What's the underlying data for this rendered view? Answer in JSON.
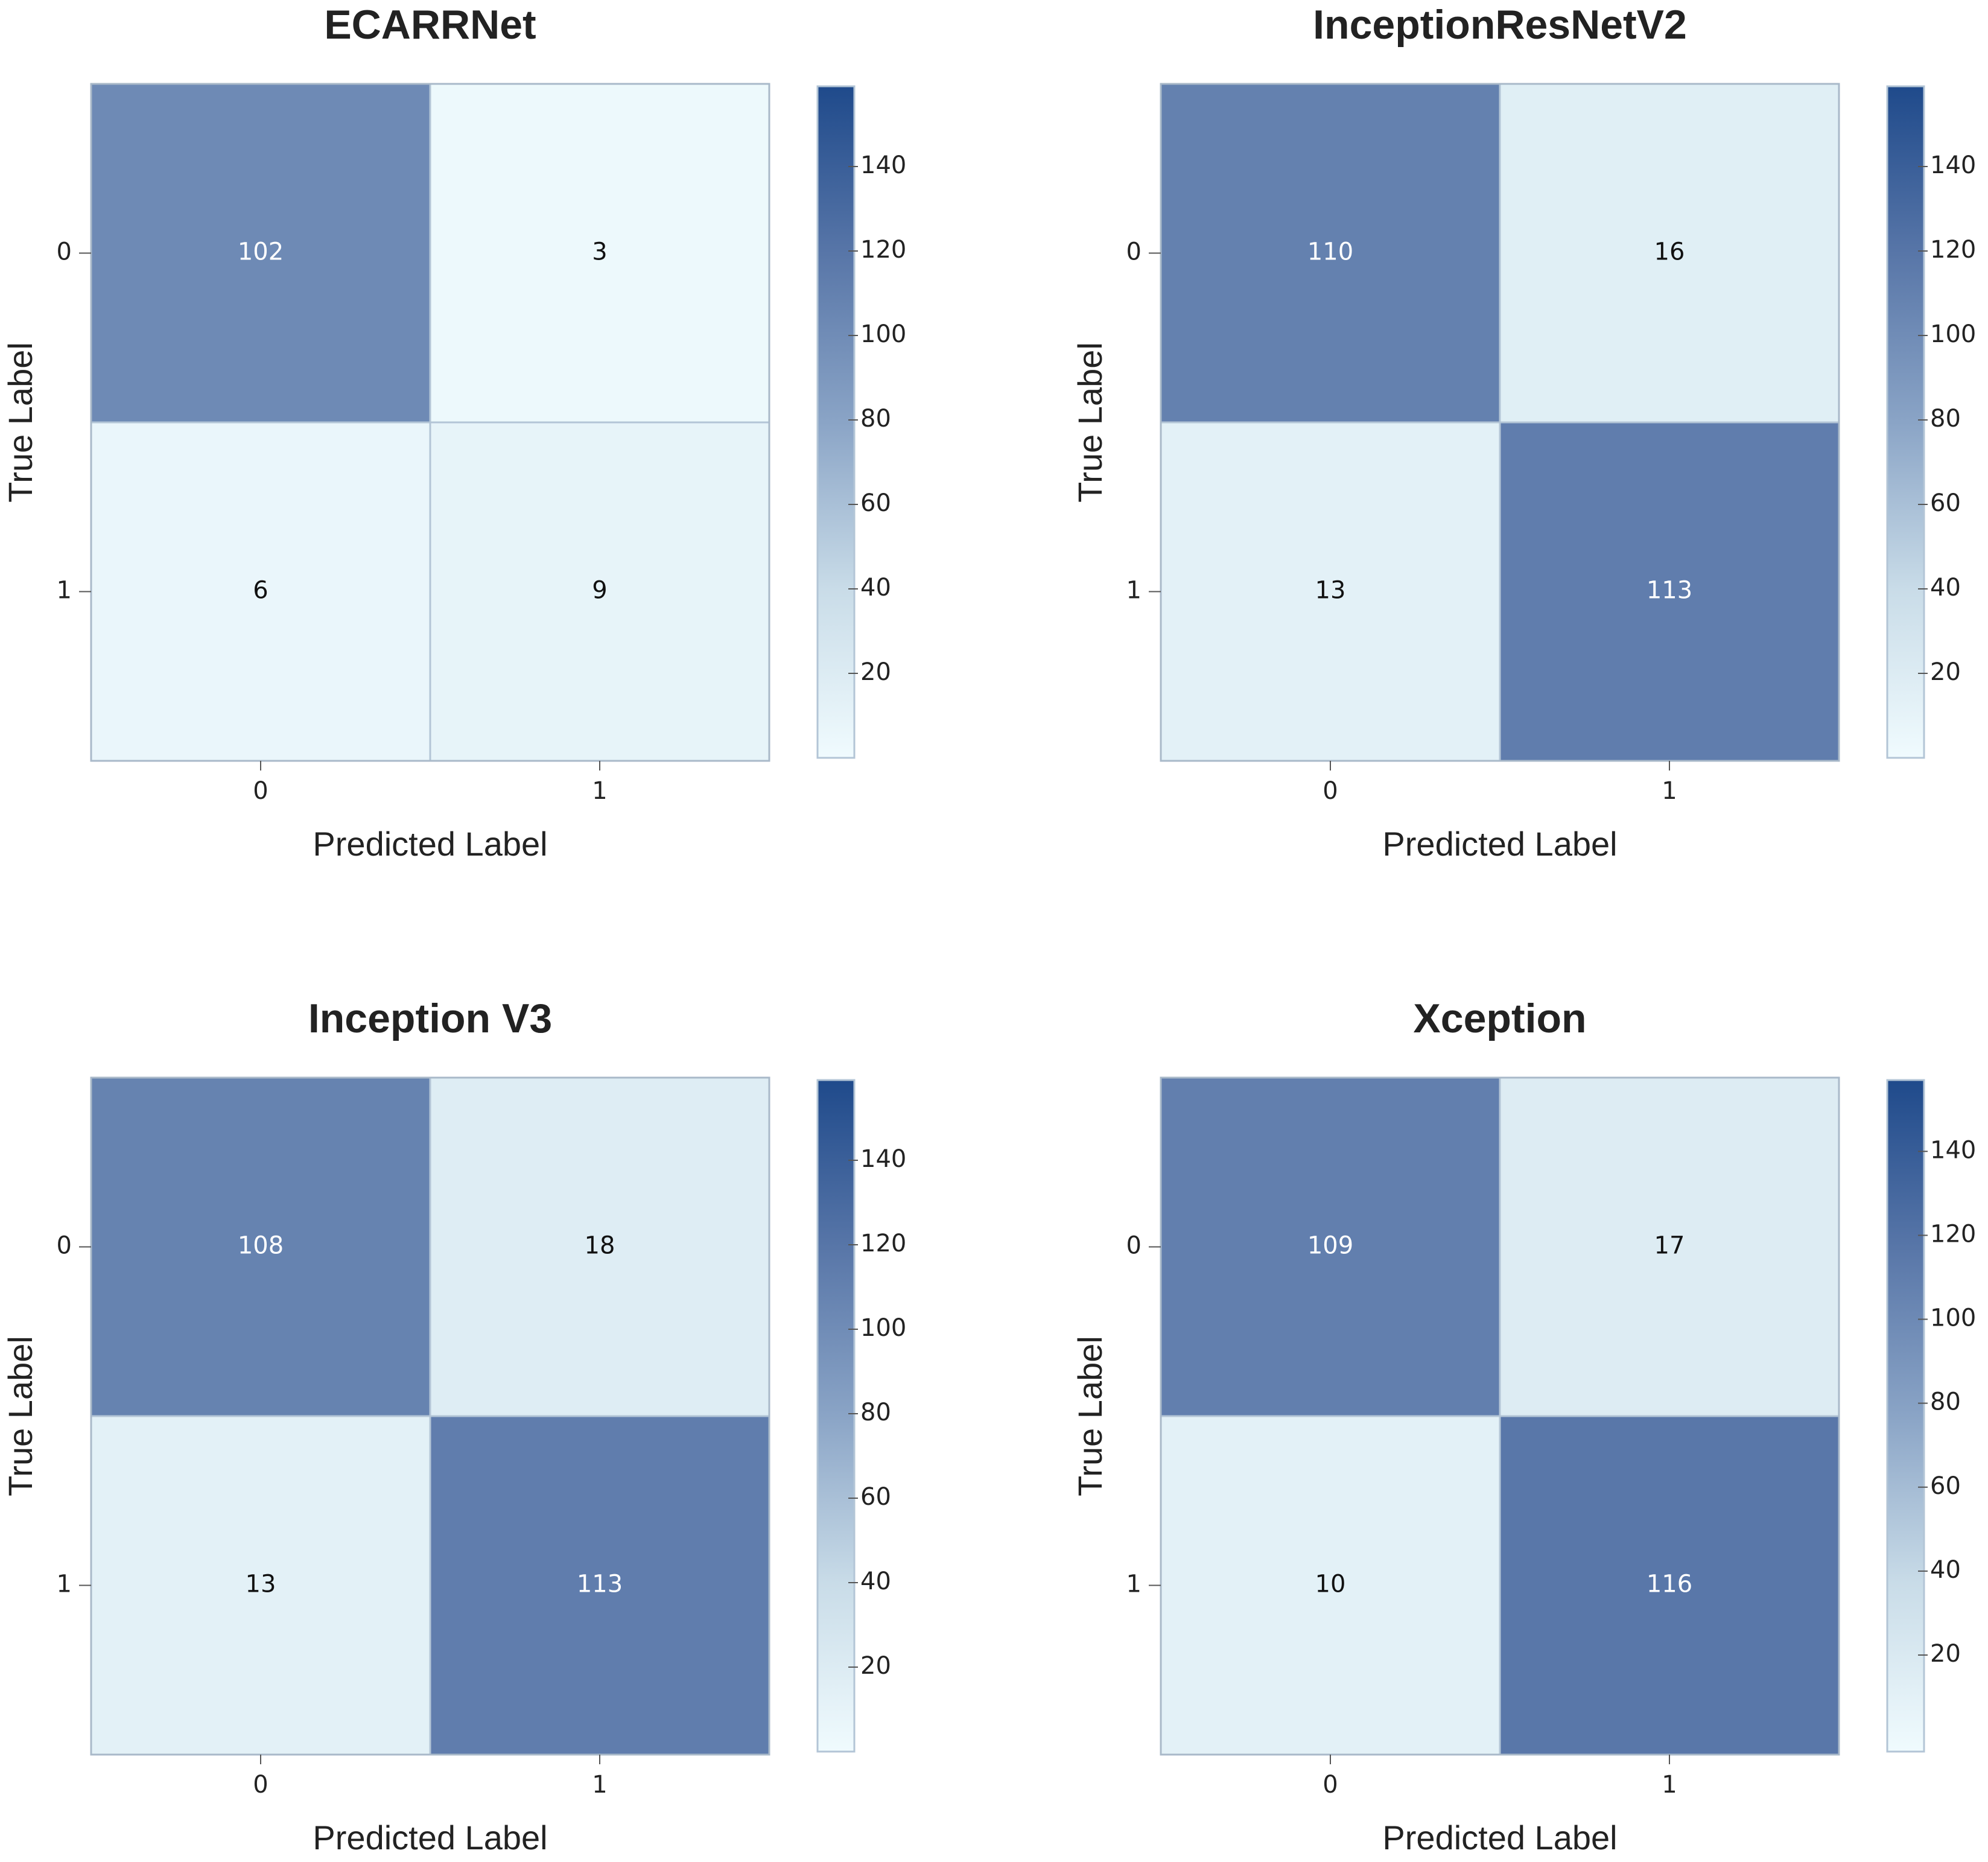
{
  "chart_data": [
    {
      "type": "heatmap",
      "title": "ECARRNet",
      "x_label": "Predicted Label",
      "y_label": "True Label",
      "categories": [
        "0",
        "1"
      ],
      "rows": [
        "0",
        "1"
      ],
      "values": [
        [
          102,
          3
        ],
        [
          6,
          9
        ]
      ],
      "zlim": [
        0,
        159
      ],
      "zticks": [
        20,
        40,
        60,
        80,
        100,
        120,
        140
      ],
      "colormap": [
        "#f0fbfe",
        "#c9dce8",
        "#8aa4c6",
        "#5876a8",
        "#1f4a8b"
      ]
    },
    {
      "type": "heatmap",
      "title": "InceptionResNetV2",
      "x_label": "Predicted Label",
      "y_label": "True Label",
      "categories": [
        "0",
        "1"
      ],
      "rows": [
        "0",
        "1"
      ],
      "values": [
        [
          110,
          16
        ],
        [
          13,
          113
        ]
      ],
      "zlim": [
        0,
        159
      ],
      "zticks": [
        20,
        40,
        60,
        80,
        100,
        120,
        140
      ],
      "colormap": [
        "#f0fbfe",
        "#c9dce8",
        "#8aa4c6",
        "#5876a8",
        "#1f4a8b"
      ]
    },
    {
      "type": "heatmap",
      "title": "Inception V3",
      "x_label": "Predicted Label",
      "y_label": "True Label",
      "categories": [
        "0",
        "1"
      ],
      "rows": [
        "0",
        "1"
      ],
      "values": [
        [
          108,
          18
        ],
        [
          13,
          113
        ]
      ],
      "zlim": [
        0,
        159
      ],
      "zticks": [
        20,
        40,
        60,
        80,
        100,
        120,
        140
      ],
      "colormap": [
        "#f0fbfe",
        "#c9dce8",
        "#8aa4c6",
        "#5876a8",
        "#1f4a8b"
      ]
    },
    {
      "type": "heatmap",
      "title": "Xception",
      "x_label": "Predicted Label",
      "y_label": "True Label",
      "categories": [
        "0",
        "1"
      ],
      "rows": [
        "0",
        "1"
      ],
      "values": [
        [
          109,
          17
        ],
        [
          10,
          116
        ]
      ],
      "zlim": [
        -3,
        157
      ],
      "zticks": [
        20,
        40,
        60,
        80,
        100,
        120,
        140
      ],
      "colormap": [
        "#f0fbfe",
        "#c9dce8",
        "#8aa4c6",
        "#5876a8",
        "#1f4a8b"
      ]
    }
  ]
}
